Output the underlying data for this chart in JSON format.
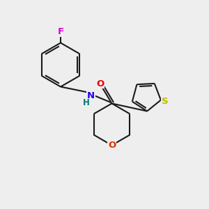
{
  "background_color": "#eeeeee",
  "fig_width": 3.0,
  "fig_height": 3.0,
  "dpi": 100,
  "bond_color": "#1a1a1a",
  "bond_lw": 1.5,
  "colors": {
    "F": "#dd00dd",
    "N": "#2200ee",
    "H": "#007777",
    "O_c": "#ee0000",
    "O_r": "#dd3300",
    "S": "#bbbb00",
    "C": "#1a1a1a"
  },
  "font_size": 9.5,
  "font_size_h": 8.5
}
